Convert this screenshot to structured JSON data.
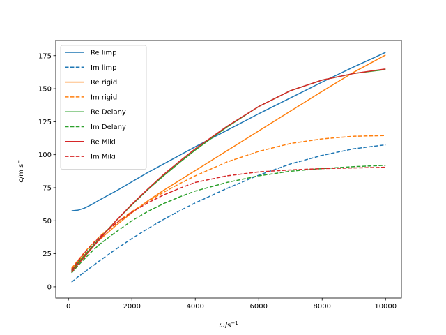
{
  "chart_data": {
    "type": "line",
    "title": "",
    "xlabel": {
      "symbol": "ω",
      "unit": "/s",
      "exp": "−1"
    },
    "ylabel": {
      "symbol": "c",
      "unit": "/m s",
      "exp": "−1"
    },
    "xlim": [
      -400,
      10500
    ],
    "ylim": [
      -8.5,
      186.5
    ],
    "xticks": [
      0,
      2000,
      4000,
      6000,
      8000,
      10000
    ],
    "xtick_labels": [
      "0",
      "2000",
      "4000",
      "6000",
      "8000",
      "10000"
    ],
    "yticks": [
      0,
      25,
      50,
      75,
      100,
      125,
      150,
      175
    ],
    "ytick_labels": [
      "0",
      "25",
      "50",
      "75",
      "100",
      "125",
      "150",
      "175"
    ],
    "grid": false,
    "legend_position": "top-left",
    "x": [
      100,
      300,
      500,
      750,
      1000,
      1500,
      2000,
      2500,
      3000,
      3500,
      4000,
      5000,
      6000,
      7000,
      8000,
      9000,
      10000
    ],
    "series": [
      {
        "name": "Re limp",
        "color": "#1f77b4",
        "style": "solid",
        "values": [
          57.5,
          58,
          59.5,
          62.5,
          66,
          72.5,
          79.5,
          86.5,
          93,
          99.5,
          106,
          118.5,
          131,
          143,
          155,
          166.5,
          177.5
        ]
      },
      {
        "name": "Im limp",
        "color": "#1f77b4",
        "style": "dashed",
        "values": [
          3.5,
          7.5,
          11,
          15.5,
          20,
          28.5,
          36.5,
          44,
          51,
          57.5,
          63.5,
          74.5,
          84.5,
          93,
          99.5,
          104.5,
          107.5
        ]
      },
      {
        "name": "Re rigid",
        "color": "#ff7f0e",
        "style": "solid",
        "values": [
          13.5,
          19,
          24,
          30,
          36,
          46.5,
          56,
          65,
          73,
          80.5,
          88,
          103,
          118,
          133,
          148,
          162.5,
          175.5
        ]
      },
      {
        "name": "Im rigid",
        "color": "#ff7f0e",
        "style": "dashed",
        "values": [
          14,
          20,
          26,
          32.5,
          38.5,
          48.5,
          57,
          64.5,
          71.5,
          78,
          84,
          94.5,
          102.5,
          108.5,
          112,
          114,
          114.5
        ]
      },
      {
        "name": "Re Delany",
        "color": "#2ca02c",
        "style": "solid",
        "values": [
          12,
          18,
          23.5,
          30.5,
          37,
          50,
          62,
          73.5,
          84,
          94,
          103.5,
          121,
          136.5,
          148.5,
          156.5,
          161.5,
          164.5
        ]
      },
      {
        "name": "Im Delany",
        "color": "#2ca02c",
        "style": "dashed",
        "values": [
          10.5,
          16,
          21,
          27,
          32.5,
          41.5,
          50,
          57,
          63,
          68,
          72.5,
          79,
          84,
          87.5,
          89.5,
          91,
          92
        ]
      },
      {
        "name": "Re Miki",
        "color": "#d62728",
        "style": "solid",
        "values": [
          11,
          17,
          22.5,
          29.5,
          36.5,
          50,
          62.5,
          74,
          85,
          95,
          104.5,
          121.5,
          136.5,
          148.5,
          156.5,
          161.5,
          165
        ]
      },
      {
        "name": "Im Miki",
        "color": "#d62728",
        "style": "dashed",
        "values": [
          12.5,
          19.5,
          25.5,
          32,
          38,
          48,
          56.5,
          63.5,
          69.5,
          74.5,
          79,
          84,
          87,
          88.5,
          89.5,
          90,
          90.5
        ]
      }
    ]
  }
}
